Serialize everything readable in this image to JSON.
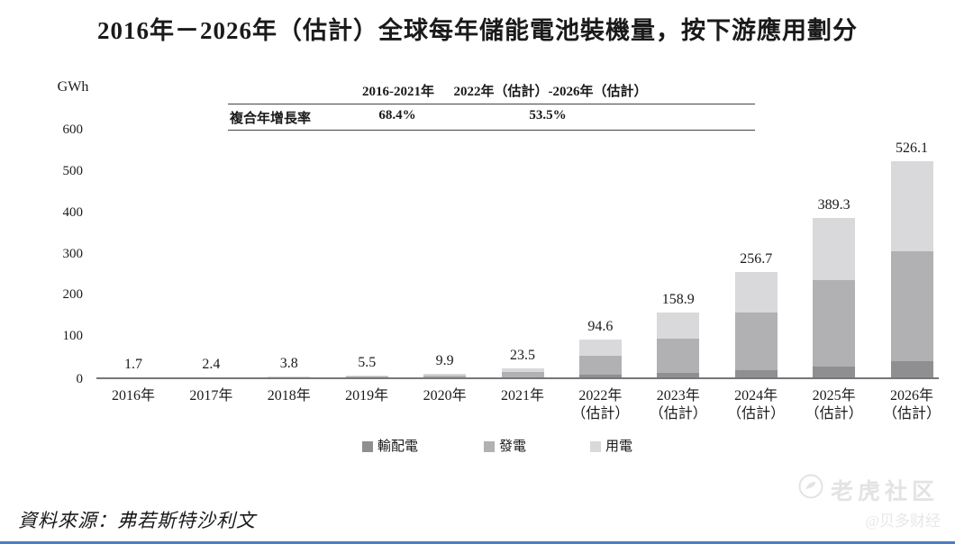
{
  "title": "2016年－2026年（估計）全球每年儲能電池裝機量，按下游應用劃分",
  "y_axis": {
    "unit": "GWh",
    "ticks": [
      0,
      100,
      200,
      300,
      400,
      500,
      600
    ]
  },
  "cagr_table": {
    "row_label": "複合年增長率",
    "col1_header": "2016-2021年",
    "col2_header": "2022年（估計）-2026年（估計）",
    "col1_value": "68.4%",
    "col2_value": "53.5%"
  },
  "chart_data": {
    "type": "bar",
    "stacked": true,
    "title": "2016年－2026年（估計）全球每年儲能電池裝機量，按下游應用劃分",
    "unit": "GWh",
    "ylabel": "GWh",
    "ylim": [
      0,
      600
    ],
    "grid": false,
    "legend_position": "bottom",
    "categories": [
      "2016年",
      "2017年",
      "2018年",
      "2019年",
      "2020年",
      "2021年",
      "2022年（估計）",
      "2023年（估計）",
      "2024年（估計）",
      "2025年（估計）",
      "2026年（估計）"
    ],
    "categories_display": [
      {
        "line1": "2016年",
        "line2": ""
      },
      {
        "line1": "2017年",
        "line2": ""
      },
      {
        "line1": "2018年",
        "line2": ""
      },
      {
        "line1": "2019年",
        "line2": ""
      },
      {
        "line1": "2020年",
        "line2": ""
      },
      {
        "line1": "2021年",
        "line2": ""
      },
      {
        "line1": "2022年",
        "line2": "（估計）"
      },
      {
        "line1": "2023年",
        "line2": "（估計）"
      },
      {
        "line1": "2024年",
        "line2": "（估計）"
      },
      {
        "line1": "2025年",
        "line2": "（估計）"
      },
      {
        "line1": "2026年",
        "line2": "（估計）"
      }
    ],
    "totals": [
      1.7,
      2.4,
      3.8,
      5.5,
      9.9,
      23.5,
      94.6,
      158.9,
      256.7,
      389.3,
      526.1
    ],
    "series": [
      {
        "name": "輸配電",
        "color": "#8f8f92",
        "values": [
          0.2,
          0.2,
          0.4,
          0.6,
          1.0,
          2.4,
          9.0,
          13.0,
          20.0,
          28.0,
          41.0
        ]
      },
      {
        "name": "發電",
        "color": "#b1b1b4",
        "values": [
          1.0,
          1.4,
          2.2,
          3.1,
          5.7,
          13.5,
          46.0,
          82.0,
          139.0,
          209.0,
          266.0
        ]
      },
      {
        "name": "用電",
        "color": "#d9d9db",
        "values": [
          0.5,
          0.8,
          1.2,
          1.8,
          3.2,
          7.6,
          39.6,
          63.9,
          97.7,
          152.3,
          219.1
        ]
      }
    ],
    "cagr": {
      "2016-2021年": "68.4%",
      "2022年（估計）-2026年（估計）": "53.5%"
    }
  },
  "legend": {
    "items": [
      "輸配電",
      "發電",
      "用電"
    ]
  },
  "source": "資料來源：弗若斯特沙利文",
  "watermark": {
    "community": "老虎社区",
    "account": "@贝多财经"
  },
  "colors": {
    "bar_dark": "#8f8f92",
    "bar_mid": "#b1b1b4",
    "bar_light": "#d9d9db",
    "axis": "#77777a",
    "text": "#1a1a1a",
    "watermark": "#e3e3e3",
    "bottom_bar": "#4b7fc4"
  }
}
